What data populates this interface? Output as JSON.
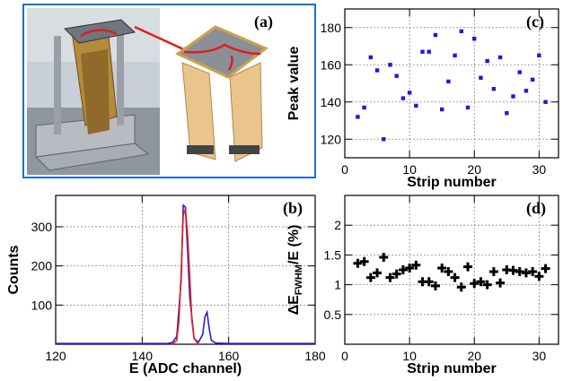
{
  "photo": {
    "description_icon": "detector-photo-icon",
    "tag": "(a)"
  },
  "chart_data": [
    {
      "id": "b",
      "type": "line",
      "panel_label": "(b)",
      "xlabel": "E (ADC channel)",
      "ylabel": "Counts",
      "xlim": [
        120,
        180
      ],
      "ylim": [
        0,
        380
      ],
      "xticks": [
        120,
        140,
        160,
        180
      ],
      "yticks": [
        100,
        200,
        300
      ],
      "grid": true,
      "series": [
        {
          "color": "#2a1fd6",
          "x": [
            120,
            146,
            147,
            148,
            149,
            149.5,
            150,
            150.5,
            151,
            152,
            153,
            154,
            154.5,
            155,
            155.5,
            156,
            157,
            160,
            180
          ],
          "y": [
            2,
            2,
            5,
            20,
            160,
            355,
            350,
            240,
            120,
            15,
            5,
            25,
            70,
            82,
            40,
            10,
            3,
            2,
            2
          ]
        },
        {
          "color": "#e01c1c",
          "x": [
            147,
            148,
            148.5,
            149,
            149.5,
            150,
            150.5,
            151,
            151.5,
            152,
            153
          ],
          "y": [
            0,
            10,
            60,
            180,
            330,
            345,
            280,
            170,
            60,
            15,
            0
          ]
        }
      ]
    },
    {
      "id": "c",
      "type": "scatter",
      "panel_label": "(c)",
      "xlabel": "Strip number",
      "ylabel": "Peak value",
      "xlim": [
        0,
        33
      ],
      "ylim": [
        110,
        190
      ],
      "xticks": [
        0,
        10,
        20,
        30
      ],
      "yticks": [
        120,
        140,
        160,
        180
      ],
      "grid": true,
      "series": [
        {
          "color": "#1a1ae0",
          "x": [
            2,
            3,
            4,
            5,
            6,
            7,
            8,
            9,
            10,
            11,
            12,
            13,
            14,
            15,
            16,
            17,
            18,
            19,
            20,
            21,
            22,
            23,
            24,
            25,
            26,
            27,
            28,
            29,
            30,
            31
          ],
          "y": [
            132,
            137,
            164,
            157,
            120,
            160,
            154,
            142,
            145,
            138,
            167,
            167,
            176,
            136,
            151,
            165,
            178,
            137,
            174,
            153,
            162,
            147,
            164,
            134,
            143,
            156,
            146,
            152,
            165,
            140
          ]
        }
      ]
    },
    {
      "id": "d",
      "type": "scatter",
      "panel_label": "(d)",
      "xlabel": "Strip number",
      "ylabel": "ΔE",
      "ylabel_sub": "FWHM",
      "ylabel_tail": "/E (%)",
      "xlim": [
        0,
        33
      ],
      "ylim": [
        0,
        2.5
      ],
      "xticks": [
        0,
        10,
        20,
        30
      ],
      "yticks": [
        0.5,
        1,
        1.5,
        2
      ],
      "grid": true,
      "series": [
        {
          "color": "#000000",
          "marker": "cross",
          "x": [
            2,
            3,
            4,
            5,
            6,
            7,
            8,
            9,
            10,
            11,
            12,
            13,
            14,
            15,
            16,
            17,
            18,
            19,
            20,
            21,
            22,
            23,
            24,
            25,
            26,
            27,
            28,
            29,
            30,
            31
          ],
          "y": [
            1.36,
            1.39,
            1.12,
            1.2,
            1.46,
            1.12,
            1.18,
            1.25,
            1.28,
            1.33,
            1.05,
            1.05,
            0.98,
            1.28,
            1.22,
            1.12,
            0.96,
            1.3,
            1.02,
            1.05,
            1.0,
            1.22,
            1.03,
            1.25,
            1.24,
            1.22,
            1.2,
            1.22,
            1.14,
            1.27
          ]
        }
      ]
    }
  ]
}
